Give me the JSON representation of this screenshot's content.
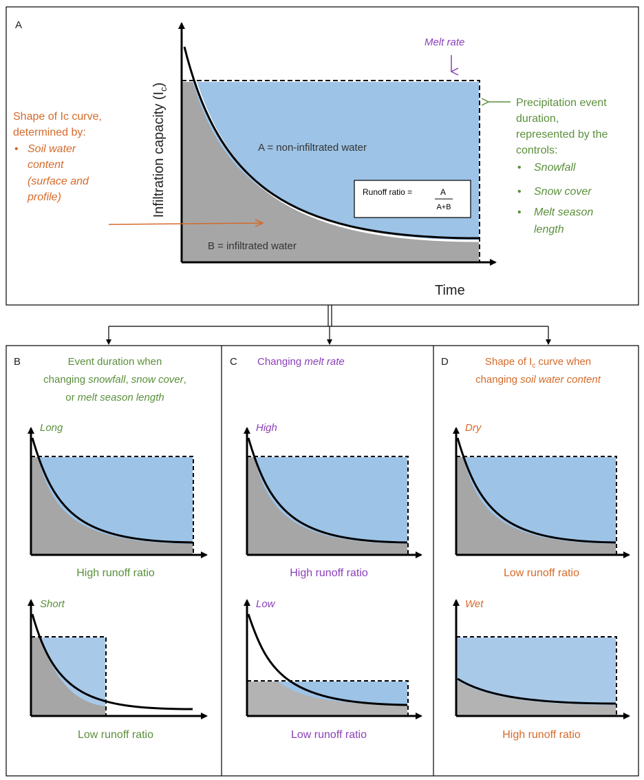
{
  "panel_a": {
    "letter": "A",
    "ylabel_main": "Infiltration capacity (I",
    "ylabel_sub": "c",
    "ylabel_close": ")",
    "xlabel": "Time",
    "melt_rate": "Melt rate",
    "area_a": "A = non-infiltrated water",
    "area_b": "B = infiltrated water",
    "runoff_label": "Runoff ratio =",
    "runoff_num": "A",
    "runoff_den": "A+B",
    "left_note": {
      "line1": "Shape of Ic curve,",
      "line2": "determined by:",
      "bullet": "•",
      "item1": "Soil water",
      "item2": "content",
      "item3": "(surface and",
      "item4": "profile)"
    },
    "right_note": {
      "line1": "Precipitation event",
      "line2": "duration,",
      "line3": "represented by the",
      "line4": "controls:",
      "bullet": "•",
      "items": [
        "Snowfall",
        "Snow cover",
        "Melt season",
        "length"
      ]
    }
  },
  "panel_b": {
    "letter": "B",
    "title1": "Event duration when",
    "title2_a": "changing ",
    "title2_b": "snowfall",
    "title2_c": ", ",
    "title2_d": "snow cover",
    "title2_e": ",",
    "title3_a": "or ",
    "title3_b": "melt season length",
    "top_label": "Long",
    "top_caption": "High runoff ratio",
    "bottom_label": "Short",
    "bottom_caption": "Low runoff ratio"
  },
  "panel_c": {
    "letter": "C",
    "title_a": "Changing ",
    "title_b": "melt rate",
    "top_label": "High",
    "top_caption": "High runoff ratio",
    "bottom_label": "Low",
    "bottom_caption": "Low runoff ratio"
  },
  "panel_d": {
    "letter": "D",
    "title1_a": "Shape of I",
    "title1_b": "c",
    "title1_c": " curve when",
    "title2_a": "changing ",
    "title2_b": "soil water content",
    "top_label": "Dry",
    "top_caption": "Low runoff ratio",
    "bottom_label": "Wet",
    "bottom_caption": "High runoff ratio"
  },
  "colors": {
    "blue": "#9dc3e6",
    "gray": "#a6a6a6",
    "green": "#5a8f3a",
    "orange": "#d56a2a",
    "purple": "#8a3fb8"
  }
}
